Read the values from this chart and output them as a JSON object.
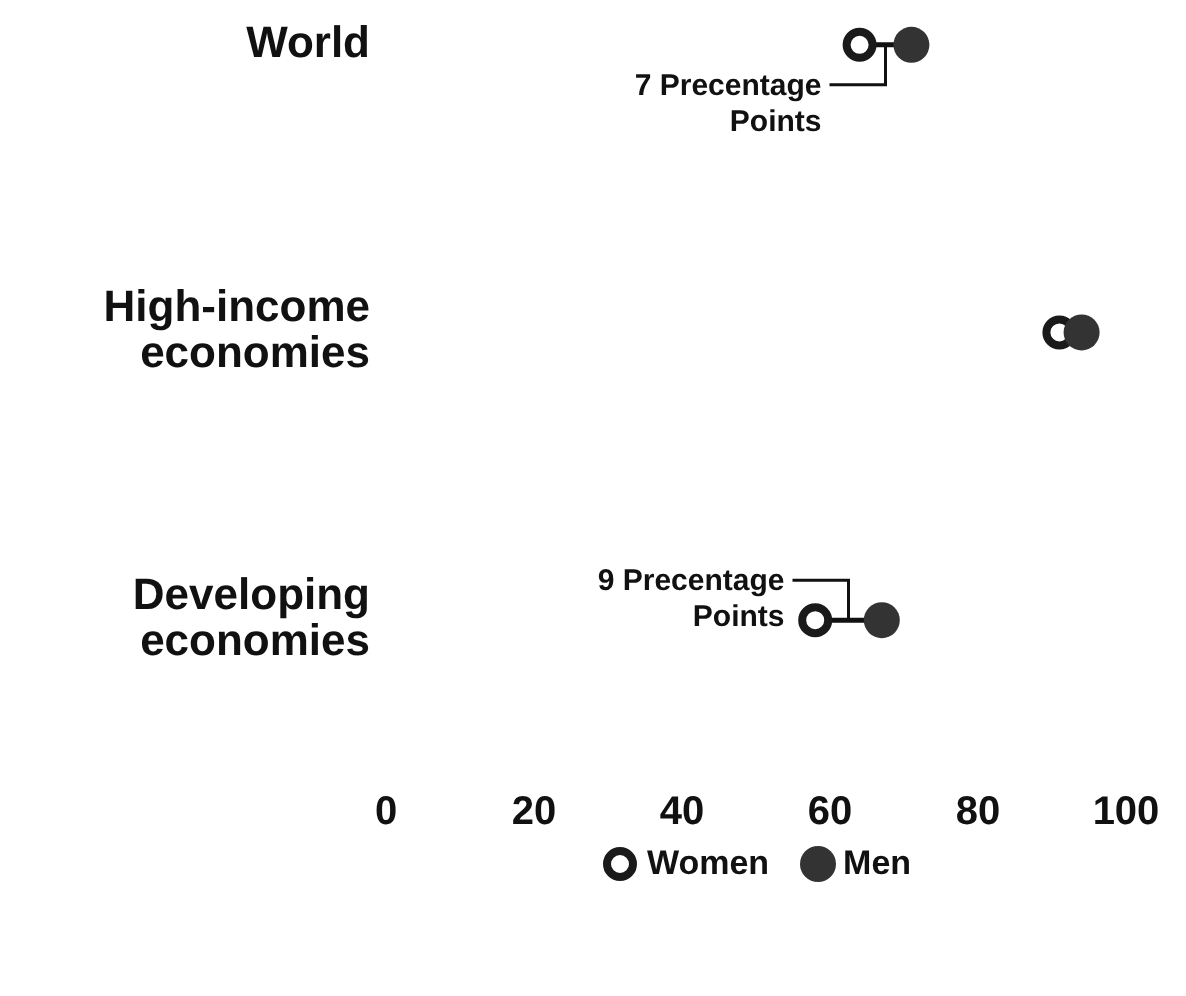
{
  "chart_data": {
    "type": "scatter",
    "orientation": "horizontal",
    "categories": [
      "World",
      "High-income economies",
      "Developing economies"
    ],
    "series": [
      {
        "name": "Women",
        "color": "#1a1a1a",
        "values": [
          64,
          91,
          58
        ]
      },
      {
        "name": "Men",
        "color": "#333333",
        "values": [
          71,
          94,
          67
        ]
      }
    ],
    "xlim": [
      0,
      100
    ],
    "xticks": [
      0,
      20,
      40,
      60,
      80,
      100
    ],
    "marker": "circle",
    "legend": "bottom",
    "grid": false,
    "annotations": [
      "7 Precentage Points",
      "9 Precentage Points"
    ]
  }
}
